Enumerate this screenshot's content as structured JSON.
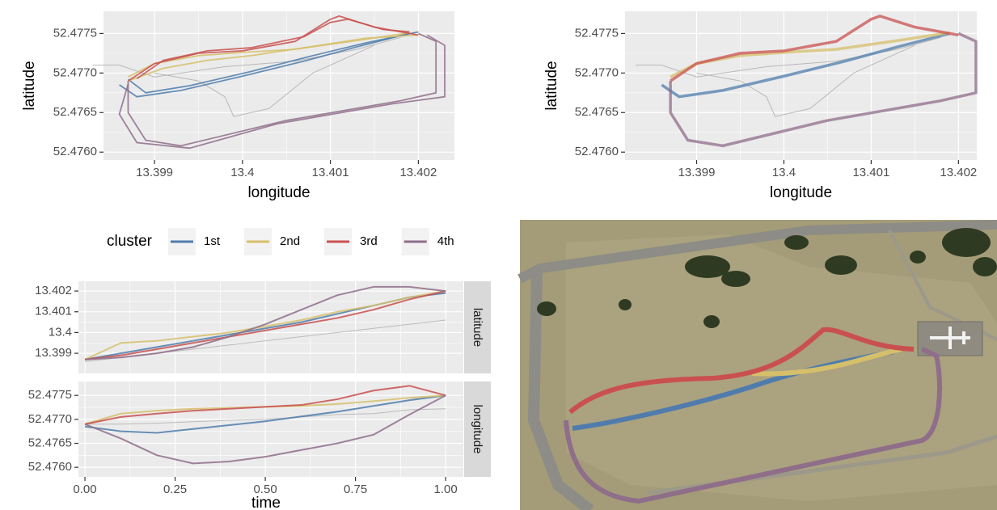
{
  "chart_data": [
    {
      "type": "line",
      "xlabel": "longitude",
      "ylabel": "latitude",
      "xlim": [
        13.39842,
        13.40241
      ],
      "ylim": [
        52.4759,
        52.47778
      ],
      "xticks": [
        13.399,
        13.4,
        13.401,
        13.402
      ],
      "yticks": [
        52.4775,
        {
          "value": 52.477,
          "label": "52.4770"
        },
        52.4765,
        {
          "value": 52.476,
          "label": "52.4760"
        }
      ],
      "series": [
        {
          "color": "#b3b3b3",
          "x": [
            13.3983,
            13.3986,
            13.399,
            13.3998,
            13.4006,
            13.4013,
            13.4018
          ],
          "values": [
            52.4771,
            52.4771,
            52.47695,
            52.47708,
            52.47715,
            52.4773,
            52.47745
          ]
        },
        {
          "color": "#b3b3b3",
          "x": [
            13.399,
            13.3995,
            13.3998,
            13.3999,
            13.4003,
            13.4008,
            13.4015
          ],
          "values": [
            52.477,
            52.4769,
            52.4767,
            52.47645,
            52.47655,
            52.477,
            52.47735
          ]
        },
        {
          "color": "#4f7cac",
          "x": [
            13.3986,
            13.3988,
            13.3993,
            13.4,
            13.4007,
            13.4013,
            13.4019
          ],
          "values": [
            52.47685,
            52.4767,
            52.47678,
            52.47696,
            52.47715,
            52.47733,
            52.4775
          ]
        },
        {
          "color": "#4f7cac",
          "x": [
            13.3987,
            13.3989,
            13.3994,
            13.4001,
            13.4008,
            13.4014,
            13.402
          ],
          "values": [
            52.47692,
            52.47675,
            52.47684,
            52.47702,
            52.47722,
            52.47738,
            52.47752
          ]
        },
        {
          "color": "#d6bf6a",
          "x": [
            13.3987,
            13.399,
            13.3995,
            13.4,
            13.4006,
            13.4013,
            13.4019
          ],
          "values": [
            52.47695,
            52.47712,
            52.47722,
            52.47726,
            52.4773,
            52.47741,
            52.47751
          ]
        },
        {
          "color": "#d6bf6a",
          "x": [
            13.3987,
            13.3991,
            13.3996,
            13.4001,
            13.4007,
            13.4014,
            13.402
          ],
          "values": [
            52.4769,
            52.47706,
            52.47716,
            52.47722,
            52.47732,
            52.47744,
            52.47748
          ]
        },
        {
          "color": "#c9504f",
          "x": [
            13.3987,
            13.399,
            13.3995,
            13.4,
            13.4006,
            13.401,
            13.4011,
            13.4015,
            13.402
          ],
          "values": [
            52.4769,
            52.47712,
            52.47725,
            52.47728,
            52.4774,
            52.47768,
            52.47772,
            52.47758,
            52.47748
          ]
        },
        {
          "color": "#c9504f",
          "x": [
            13.3988,
            13.3991,
            13.3996,
            13.4001,
            13.4007,
            13.401,
            13.4012,
            13.4016,
            13.4019
          ],
          "values": [
            52.47693,
            52.47716,
            52.47728,
            52.47732,
            52.47746,
            52.47764,
            52.47768,
            52.47755,
            52.47752
          ]
        },
        {
          "color": "#8f6e8a",
          "x": [
            13.402,
            13.4022,
            13.4022,
            13.4018,
            13.4005,
            13.3993,
            13.3989,
            13.3987,
            13.3987
          ],
          "values": [
            52.4775,
            52.4774,
            52.47675,
            52.47665,
            52.4764,
            52.47608,
            52.47615,
            52.4765,
            52.4769
          ]
        },
        {
          "color": "#8f6e8a",
          "x": [
            13.4021,
            13.4023,
            13.4023,
            13.4017,
            13.4004,
            13.3994,
            13.3988,
            13.3986,
            13.3987
          ],
          "values": [
            52.47748,
            52.47735,
            52.4767,
            52.47661,
            52.47636,
            52.47605,
            52.47612,
            52.47648,
            52.47686
          ]
        }
      ]
    },
    {
      "type": "line",
      "xlabel": "longitude",
      "ylabel": "latitude",
      "xlim": [
        13.39818,
        13.40221
      ],
      "ylim": [
        52.4759,
        52.47778
      ],
      "xticks": [
        13.399,
        13.4,
        13.401,
        13.402
      ],
      "yticks": [
        52.4775,
        {
          "value": 52.477,
          "label": "52.4770"
        },
        52.4765,
        {
          "value": 52.476,
          "label": "52.4760"
        }
      ],
      "series": [
        {
          "color": "#b3b3b3",
          "x": [
            13.3983,
            13.3986,
            13.399,
            13.3998,
            13.4006,
            13.4013,
            13.4018
          ],
          "values": [
            52.4771,
            52.4771,
            52.47695,
            52.47708,
            52.47715,
            52.4773,
            52.47745
          ]
        },
        {
          "color": "#b3b3b3",
          "x": [
            13.399,
            13.3995,
            13.3998,
            13.3999,
            13.4003,
            13.4008,
            13.4015
          ],
          "values": [
            52.477,
            52.4769,
            52.4767,
            52.47645,
            52.47655,
            52.477,
            52.47735
          ]
        },
        {
          "color": "#4f7cac",
          "x": [
            13.3986,
            13.3988,
            13.3993,
            13.4,
            13.4007,
            13.4013,
            13.4019
          ],
          "values": [
            52.47685,
            52.4767,
            52.47678,
            52.47696,
            52.47715,
            52.47733,
            52.4775
          ]
        },
        {
          "color": "#d6bf6a",
          "x": [
            13.3987,
            13.399,
            13.3995,
            13.4,
            13.4006,
            13.4013,
            13.4019
          ],
          "values": [
            52.47695,
            52.47712,
            52.47722,
            52.47726,
            52.4773,
            52.47741,
            52.47751
          ]
        },
        {
          "color": "#c9504f",
          "x": [
            13.3987,
            13.399,
            13.3995,
            13.4,
            13.4006,
            13.401,
            13.4011,
            13.4015,
            13.402
          ],
          "values": [
            52.4769,
            52.47712,
            52.47725,
            52.47728,
            52.4774,
            52.47768,
            52.47772,
            52.47758,
            52.47748
          ]
        },
        {
          "color": "#8f6e8a",
          "x": [
            13.402,
            13.4022,
            13.4022,
            13.4018,
            13.4005,
            13.3993,
            13.3989,
            13.3987,
            13.3987
          ],
          "values": [
            52.4775,
            52.4774,
            52.47675,
            52.47665,
            52.4764,
            52.47608,
            52.47615,
            52.4765,
            52.4769
          ]
        }
      ]
    },
    {
      "type": "facet-line",
      "xlabel": "time",
      "legend_title": "cluster",
      "xlim": [
        -0.018,
        1.049
      ],
      "xticks": [
        {
          "value": 0,
          "label": "0.00"
        },
        {
          "value": 0.25,
          "label": "0.25"
        },
        {
          "value": 0.5,
          "label": "0.50"
        },
        {
          "value": 0.75,
          "label": "0.75"
        },
        {
          "value": 1,
          "label": "1.00"
        }
      ],
      "x": [
        0,
        0.1,
        0.2,
        0.3,
        0.4,
        0.5,
        0.6,
        0.7,
        0.8,
        0.9,
        1
      ],
      "facets": [
        {
          "strip": "latitude",
          "ylim": [
            13.39803,
            13.40247
          ],
          "yticks": [
            13.399,
            13.4,
            13.401,
            13.402
          ],
          "series": [
            {
              "color": "#b3b3b3",
              "values": [
                13.3986,
                13.3988,
                13.399,
                13.3992,
                13.3994,
                13.3996,
                13.3998,
                13.4,
                13.4002,
                13.4004,
                13.4006
              ]
            },
            {
              "name": "1st",
              "color": "#4f7cac",
              "values": [
                13.3987,
                13.399,
                13.3993,
                13.3996,
                13.3999,
                13.4002,
                13.4005,
                13.4009,
                13.4013,
                13.4017,
                13.4019
              ]
            },
            {
              "name": "2nd",
              "color": "#d6bf6a",
              "values": [
                13.3987,
                13.3995,
                13.3996,
                13.3998,
                13.4,
                13.4003,
                13.4006,
                13.401,
                13.4013,
                13.4017,
                13.402
              ]
            },
            {
              "name": "3rd",
              "color": "#c9504f",
              "values": [
                13.3987,
                13.3989,
                13.3992,
                13.3995,
                13.3998,
                13.4001,
                13.4004,
                13.4007,
                13.4011,
                13.4016,
                13.402
              ]
            },
            {
              "name": "4th",
              "color": "#8f6e8a",
              "values": [
                13.3987,
                13.3988,
                13.399,
                13.3993,
                13.3998,
                13.4004,
                13.4011,
                13.4018,
                13.4022,
                13.4022,
                13.402
              ]
            }
          ]
        },
        {
          "strip": "longitude",
          "ylim": [
            52.4758,
            52.47779
          ],
          "yticks": [
            52.4775,
            {
              "value": 52.477,
              "label": "52.4770"
            },
            52.4765,
            {
              "value": 52.476,
              "label": "52.4760"
            }
          ],
          "series": [
            {
              "color": "#b3b3b3",
              "values": [
                52.4769,
                52.4769,
                52.47692,
                52.47695,
                52.47698,
                52.477,
                52.47705,
                52.4771,
                52.47712,
                52.4772,
                52.47722
              ]
            },
            {
              "color": "#4f7cac",
              "values": [
                52.47685,
                52.47675,
                52.47672,
                52.4768,
                52.47688,
                52.47696,
                52.47706,
                52.47716,
                52.47728,
                52.4774,
                52.4775
              ]
            },
            {
              "color": "#d6bf6a",
              "values": [
                52.4769,
                52.47712,
                52.47718,
                52.47722,
                52.47724,
                52.47726,
                52.47728,
                52.47732,
                52.47738,
                52.47745,
                52.4775
              ]
            },
            {
              "color": "#c9504f",
              "values": [
                52.4769,
                52.47705,
                52.47712,
                52.47718,
                52.47722,
                52.47726,
                52.4773,
                52.47742,
                52.4776,
                52.4777,
                52.4775
              ]
            },
            {
              "color": "#8f6e8a",
              "values": [
                52.4769,
                52.4766,
                52.47625,
                52.47608,
                52.47612,
                52.47622,
                52.47636,
                52.4765,
                52.47668,
                52.4771,
                52.4775
              ]
            }
          ]
        }
      ]
    }
  ]
}
